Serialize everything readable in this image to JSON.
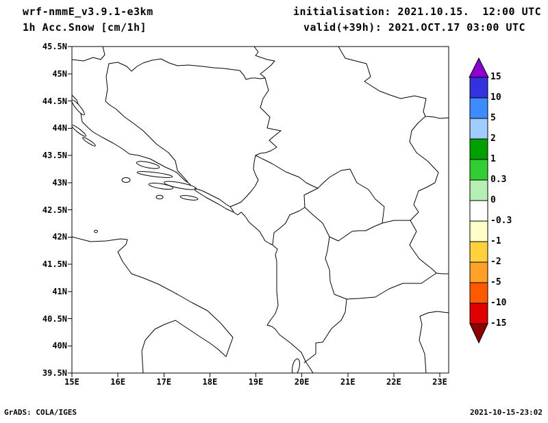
{
  "header": {
    "model_line": "wrf-nmmE_v3.9.1-e3km",
    "field_line": "1h Acc.Snow [cm/1h]",
    "init_line": "initialisation: 2021.10.15.  12:00 UTC",
    "valid_line": "valid(+39h): 2021.OCT.17 03:00 UTC"
  },
  "axes": {
    "lat_labels": [
      "45.5N",
      "45N",
      "44.5N",
      "44N",
      "43.5N",
      "43N",
      "42.5N",
      "42N",
      "41.5N",
      "41N",
      "40.5N",
      "40N",
      "39.5N"
    ],
    "lon_labels": [
      "15E",
      "16E",
      "17E",
      "18E",
      "19E",
      "20E",
      "21E",
      "22E",
      "23E"
    ]
  },
  "colorbar": {
    "labels": [
      "15",
      "10",
      "5",
      "2",
      "1",
      "0.3",
      "0",
      "-0.3",
      "-1",
      "-2",
      "-5",
      "-10",
      "-15"
    ],
    "cell_colors": [
      "#3232e0",
      "#3c8cff",
      "#a0ccff",
      "#00a000",
      "#32cd32",
      "#b4f0b4",
      "#ffffff",
      "#ffffc8",
      "#ffd23c",
      "#ffa028",
      "#ff5a00",
      "#e10000"
    ],
    "arrow_up_color": "#8c00d2",
    "arrow_down_color": "#8c0000"
  },
  "footer": {
    "credit": "GrADS: COLA/IGES",
    "timestamp": "2021-10-15-23:02"
  },
  "chart_data": {
    "type": "map",
    "field": "1h Acc.Snow",
    "units": "cm/1h",
    "lon_range": [
      15,
      23.2
    ],
    "lat_range": [
      39.5,
      45.5
    ],
    "region_hint": "Adriatic Sea / Balkans with national borders and coastlines",
    "colorbar_levels": [
      15,
      10,
      5,
      2,
      1,
      0.3,
      0,
      -0.3,
      -1,
      -2,
      -5,
      -10,
      -15
    ],
    "shaded_data": "none (no snow accumulation plotted anywhere in domain at this hour)"
  }
}
